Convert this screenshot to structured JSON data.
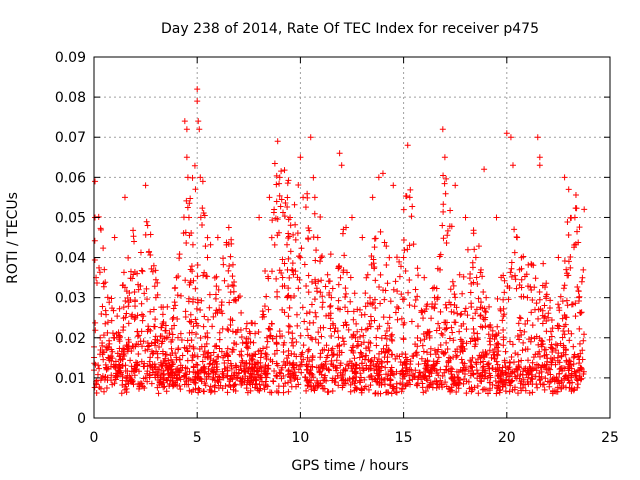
{
  "chart_data": {
    "type": "scatter",
    "title": "Day 238 of 2014, Rate Of TEC Index for receiver p475",
    "xlabel": "GPS time / hours",
    "ylabel": "ROTI / TECUs",
    "xlim": [
      0,
      25
    ],
    "ylim": [
      0,
      0.09
    ],
    "x_ticks": [
      0,
      5,
      10,
      15,
      20,
      25
    ],
    "y_ticks": [
      0,
      0.01,
      0.02,
      0.03,
      0.04,
      0.05,
      0.06,
      0.07,
      0.08,
      0.09
    ],
    "x_tick_labels": [
      "0",
      "5",
      "10",
      "15",
      "20",
      "25"
    ],
    "y_tick_labels": [
      "0",
      "0.01",
      "0.02",
      "0.03",
      "0.04",
      "0.05",
      "0.06",
      "0.07",
      "0.08",
      "0.09"
    ],
    "grid": true,
    "marker": "+",
    "point_color": "#ff0000",
    "data_x_range": [
      0,
      23.75
    ],
    "series": [
      {
        "name": "p475",
        "x": [
          0.05,
          0.05,
          0.1,
          0.1,
          0.3,
          0.5,
          1.0,
          1.5,
          2.0,
          2.5,
          2.6,
          3.0,
          3.5,
          4.0,
          4.4,
          4.5,
          4.5,
          4.55,
          4.6,
          5.0,
          5.0,
          5.05,
          5.1,
          5.15,
          5.5,
          6.0,
          7.0,
          8.0,
          8.5,
          8.9,
          9.0,
          9.5,
          10.0,
          10.5,
          10.7,
          11.0,
          11.5,
          11.9,
          12.0,
          12.5,
          13.0,
          13.5,
          13.8,
          14.0,
          14.5,
          15.0,
          15.2,
          15.3,
          16.0,
          16.5,
          16.9,
          17.0,
          17.5,
          18.0,
          18.5,
          18.9,
          19.0,
          19.5,
          20.0,
          20.2,
          20.3,
          20.5,
          21.0,
          21.5,
          21.6,
          21.6,
          22.0,
          22.5,
          22.8,
          23.0,
          23.3,
          23.5,
          23.75
        ],
        "y": [
          0.059,
          0.05,
          0.035,
          0.009,
          0.02,
          0.037,
          0.045,
          0.055,
          0.025,
          0.058,
          0.048,
          0.03,
          0.02,
          0.035,
          0.074,
          0.072,
          0.065,
          0.06,
          0.05,
          0.082,
          0.079,
          0.074,
          0.072,
          0.06,
          0.04,
          0.045,
          0.03,
          0.05,
          0.055,
          0.069,
          0.06,
          0.05,
          0.065,
          0.07,
          0.055,
          0.04,
          0.03,
          0.066,
          0.063,
          0.05,
          0.045,
          0.055,
          0.06,
          0.061,
          0.058,
          0.04,
          0.068,
          0.055,
          0.035,
          0.03,
          0.072,
          0.065,
          0.058,
          0.05,
          0.04,
          0.062,
          0.03,
          0.05,
          0.071,
          0.07,
          0.063,
          0.045,
          0.03,
          0.07,
          0.065,
          0.063,
          0.025,
          0.04,
          0.06,
          0.057,
          0.05,
          0.03,
          0.052
        ]
      }
    ]
  }
}
